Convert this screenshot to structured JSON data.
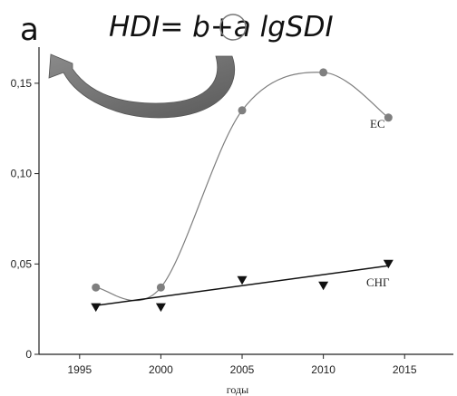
{
  "chart_data": {
    "type": "scatter",
    "panel_label": "a",
    "formula": "HDI= b+a lgSDI",
    "xlabel": "годы",
    "ylabel": "",
    "xlim": [
      1992.5,
      2018
    ],
    "ylim": [
      0,
      0.17
    ],
    "xticks": [
      1995,
      2000,
      2005,
      2010,
      2015
    ],
    "yticks": [
      0,
      0.05,
      0.1,
      0.15
    ],
    "ytick_labels": [
      "0",
      "0,05",
      "0,10",
      "0,15"
    ],
    "series": [
      {
        "name": "ЕС",
        "marker": "circle",
        "color": "#7f7f7f",
        "points": [
          [
            1996,
            0.037
          ],
          [
            2000,
            0.037
          ],
          [
            2005,
            0.135
          ],
          [
            2010,
            0.156
          ],
          [
            2014,
            0.131
          ]
        ],
        "fit": "smooth"
      },
      {
        "name": "СНГ",
        "marker": "triangle-down",
        "color": "#111111",
        "points": [
          [
            1996,
            0.026
          ],
          [
            2000,
            0.026
          ],
          [
            2005,
            0.041
          ],
          [
            2010,
            0.038
          ],
          [
            2014,
            0.05
          ]
        ],
        "fit": "linear",
        "fit_line": [
          [
            1996,
            0.027
          ],
          [
            2014,
            0.049
          ]
        ]
      }
    ],
    "grid": false
  }
}
